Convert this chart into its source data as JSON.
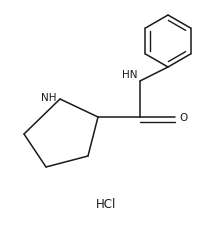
{
  "background_color": "#ffffff",
  "line_color": "#1a1a1a",
  "text_color": "#1a1a1a",
  "font_size_atoms": 7.5,
  "font_size_hcl": 8.5,
  "figsize": [
    2.12,
    2.26
  ],
  "dpi": 100,
  "HCl_label": "HCl",
  "NH_amide_label": "HN",
  "O_label": "O",
  "NH_pyrr_label": "NH",
  "lw": 1.1,
  "lw_double_inner": 1.0
}
